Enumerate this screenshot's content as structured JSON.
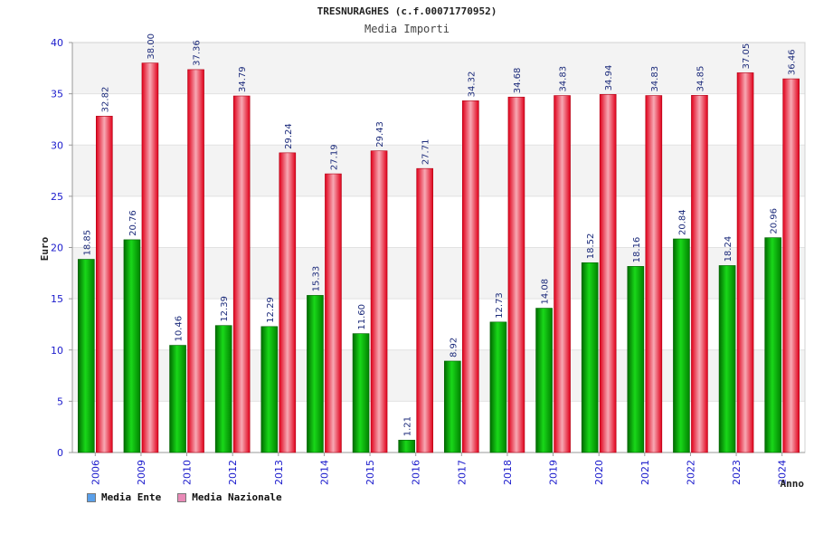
{
  "chart_data": {
    "type": "bar",
    "title": "TRESNURAGHES (c.f.00071770952)",
    "subtitle": "Media Importi",
    "xlabel": "Anno",
    "ylabel": "Euro",
    "ylim": [
      0,
      40
    ],
    "yticks": [
      0,
      5,
      10,
      15,
      20,
      25,
      30,
      35,
      40
    ],
    "grid": true,
    "legend_position": "bottom-left",
    "categories": [
      "2006",
      "2009",
      "2010",
      "2012",
      "2013",
      "2014",
      "2015",
      "2016",
      "2017",
      "2018",
      "2019",
      "2020",
      "2021",
      "2022",
      "2023",
      "2024"
    ],
    "series": [
      {
        "name": "Media Ente",
        "color": "#00b000",
        "values": [
          18.85,
          20.76,
          10.46,
          12.39,
          12.29,
          15.33,
          11.6,
          1.21,
          8.92,
          12.73,
          14.08,
          18.52,
          18.16,
          20.84,
          18.24,
          20.96
        ],
        "labels": [
          "18.85",
          "20.76",
          "10.46",
          "12.39",
          "12.29",
          "15.33",
          "11.60",
          "1.21",
          "8.92",
          "12.73",
          "14.08",
          "18.52",
          "18.16",
          "20.84",
          "18.24",
          "20.96"
        ]
      },
      {
        "name": "Media Nazionale",
        "color": "#e8001c",
        "values": [
          32.82,
          38.0,
          37.36,
          34.79,
          29.24,
          27.19,
          29.43,
          27.71,
          34.32,
          34.68,
          34.83,
          34.94,
          34.83,
          34.85,
          37.05,
          36.46
        ],
        "labels": [
          "32.82",
          "38.00",
          "37.36",
          "34.79",
          "29.24",
          "27.19",
          "29.43",
          "27.71",
          "34.32",
          "34.68",
          "34.83",
          "34.94",
          "34.83",
          "34.85",
          "37.05",
          "36.46"
        ]
      }
    ]
  },
  "legend": {
    "ente_label": "Media Ente",
    "nazionale_label": "Media Nazionale",
    "ente_color": "#5aa0ea",
    "nazionale_color": "#e98ab7"
  }
}
